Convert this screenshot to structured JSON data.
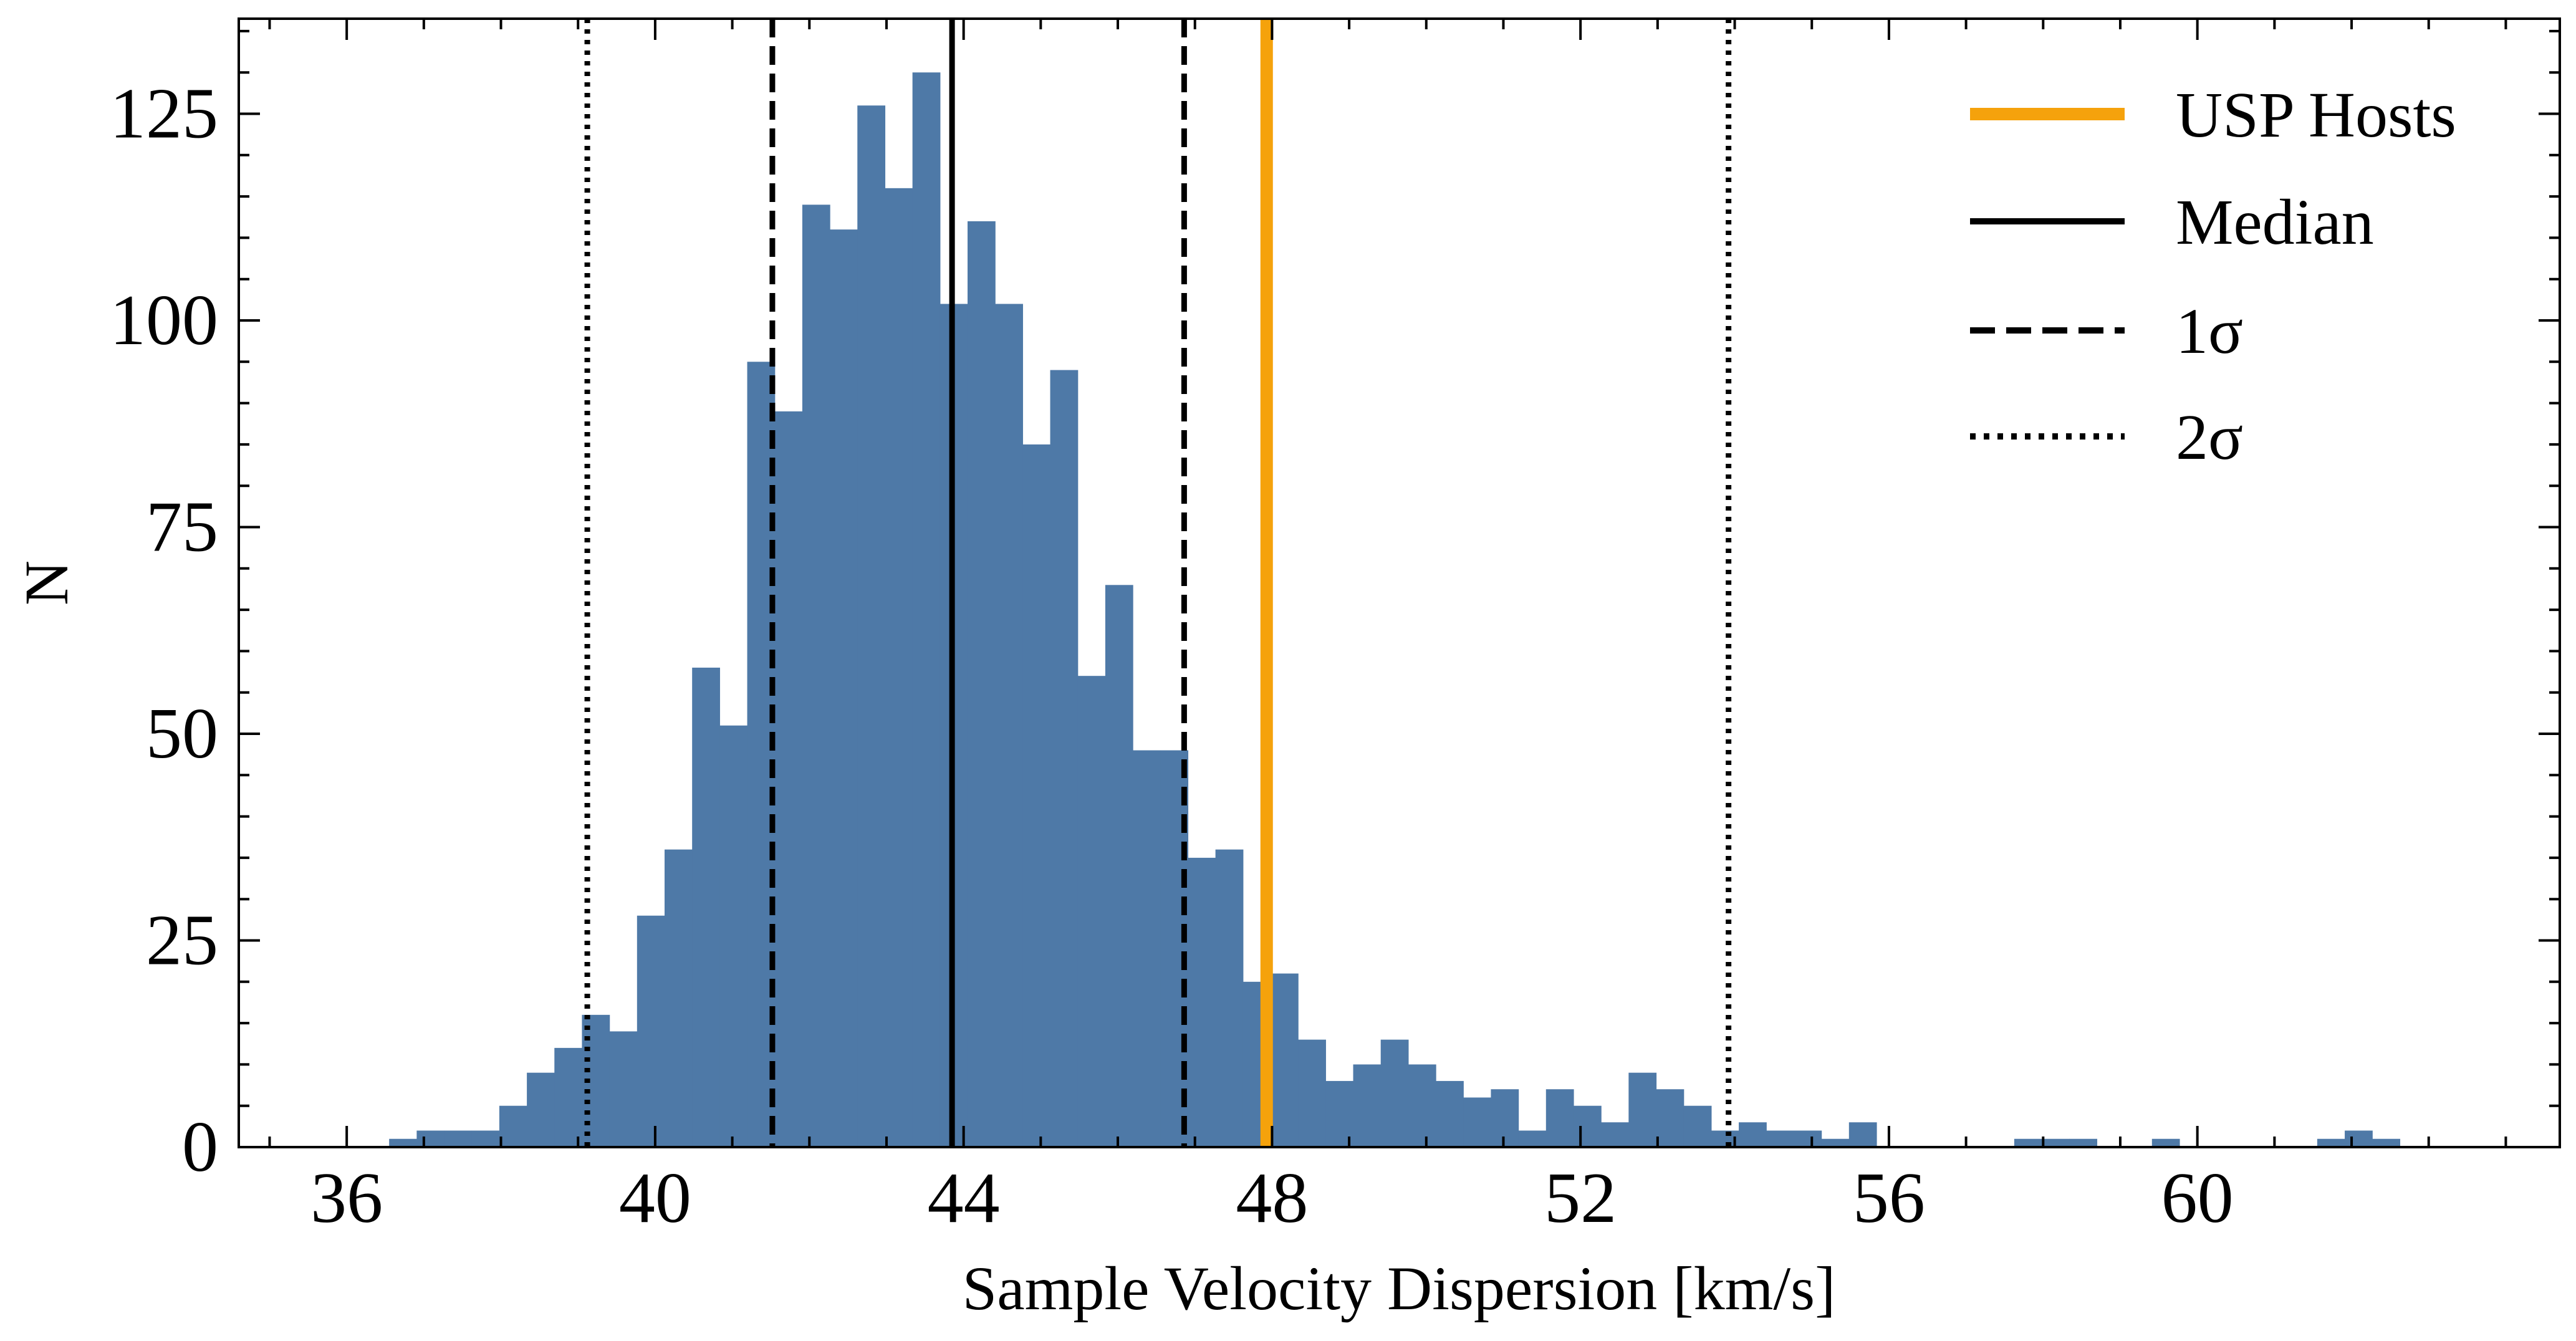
{
  "chart_data": {
    "type": "bar",
    "title": "",
    "xlabel": "Sample Velocity Dispersion [km/s]",
    "ylabel": "N",
    "xlim": [
      34.6,
      64.7
    ],
    "ylim": [
      0,
      136.5
    ],
    "xticks": [
      36,
      40,
      44,
      48,
      52,
      56,
      60
    ],
    "xtick_labels": [
      "36",
      "40",
      "44",
      "48",
      "52",
      "56",
      "60"
    ],
    "yticks": [
      0,
      25,
      50,
      75,
      100,
      125
    ],
    "ytick_labels": [
      "0",
      "25",
      "50",
      "75",
      "100",
      "125"
    ],
    "grid": false,
    "legend_position": "top-right",
    "bar_color": "#4e79a7",
    "histogram": {
      "bin_width": 0.3572,
      "bin_edges_start": 36.55,
      "counts": [
        1,
        2,
        2,
        2,
        5,
        9,
        12,
        16,
        14,
        28,
        36,
        58,
        51,
        95,
        89,
        114,
        111,
        126,
        116,
        130,
        102,
        112,
        102,
        85,
        94,
        57,
        68,
        48,
        48,
        35,
        36,
        20,
        21,
        13,
        8,
        10,
        13,
        10,
        8,
        6,
        7,
        2,
        7,
        5,
        3,
        9,
        7,
        5,
        2,
        3,
        2,
        2,
        1,
        3,
        0,
        0,
        0,
        0,
        0,
        1,
        1,
        1,
        0,
        0,
        1,
        0,
        0,
        0,
        0,
        0,
        1,
        2,
        1
      ]
    },
    "vlines": [
      {
        "name": "USP Hosts",
        "x": 47.93,
        "style": "solid",
        "color": "#f5a20c",
        "width": "thick"
      },
      {
        "name": "Median",
        "x": 43.85,
        "style": "solid",
        "color": "#000000",
        "width": "normal"
      },
      {
        "name": "1σ",
        "x": 41.52,
        "style": "dashed",
        "color": "#000000",
        "width": "normal"
      },
      {
        "name": "1σ",
        "x": 46.86,
        "style": "dashed",
        "color": "#000000",
        "width": "normal"
      },
      {
        "name": "2σ",
        "x": 39.12,
        "style": "dotted",
        "color": "#000000",
        "width": "normal"
      },
      {
        "name": "2σ",
        "x": 53.92,
        "style": "dotted",
        "color": "#000000",
        "width": "normal"
      }
    ],
    "legend": [
      {
        "label": "USP Hosts",
        "style": "solid",
        "color": "#f5a20c",
        "width": "thick"
      },
      {
        "label": "Median",
        "style": "solid",
        "color": "#000000",
        "width": "normal"
      },
      {
        "label": "1σ",
        "style": "dashed",
        "color": "#000000",
        "width": "normal"
      },
      {
        "label": "2σ",
        "style": "dotted",
        "color": "#000000",
        "width": "normal"
      }
    ]
  }
}
